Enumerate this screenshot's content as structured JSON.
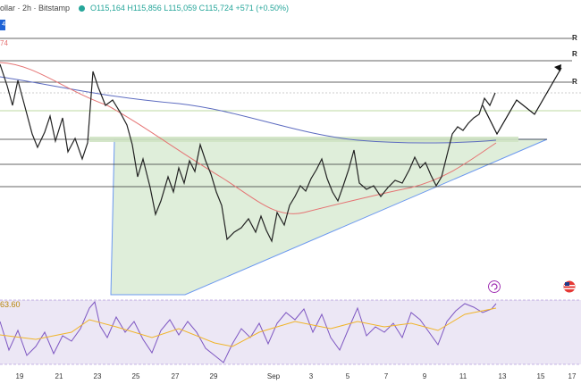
{
  "header": {
    "title": "ollar · 2h · Bitstamp",
    "ohlc": "O115,164 H115,856 L115,059 C115,724 +571 (+0.50%)"
  },
  "tags": {
    "price_left": "74",
    "blue_left": "4",
    "rsi_value": "63.60"
  },
  "level_labels": [
    "R",
    "R",
    "R"
  ],
  "x_axis_labels": [
    "19",
    "21",
    "23",
    "25",
    "27",
    "29",
    "Sep",
    "3",
    "5",
    "7",
    "9",
    "11",
    "13",
    "15",
    "17"
  ],
  "icons": {
    "rsi_settings": "refresh-icon",
    "flag": "us-flag-icon"
  },
  "colors": {
    "up": "#26a69a",
    "ema_fast": "#e57373",
    "ema_slow": "#5c6bc0",
    "triangle_fill": "#dcedd6",
    "rsi_line": "#7e57c2",
    "rsi_ma": "#f0b429"
  }
}
